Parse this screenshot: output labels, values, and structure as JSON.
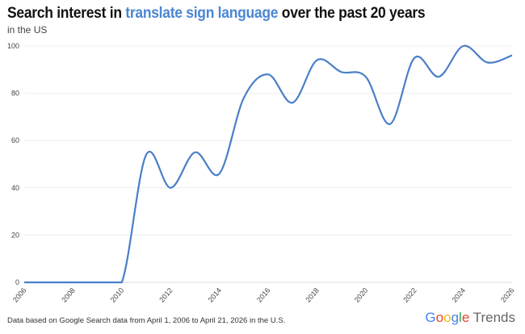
{
  "chart_data": {
    "type": "line",
    "title_prefix": "Search interest in ",
    "title_keyword": "translate sign language",
    "title_suffix": " over the past 20 years",
    "subtitle": "in the US",
    "x": [
      2006,
      2007,
      2008,
      2009,
      2010,
      2011,
      2012,
      2013,
      2014,
      2015,
      2016,
      2017,
      2018,
      2019,
      2020,
      2021,
      2022,
      2023,
      2024,
      2025,
      2026
    ],
    "values": [
      0,
      0,
      0,
      0,
      0,
      54,
      40,
      55,
      46,
      78,
      88,
      76,
      94,
      89,
      87,
      67,
      95,
      87,
      100,
      93,
      96
    ],
    "xlim": [
      2006,
      2026
    ],
    "ylim": [
      0,
      100
    ],
    "x_ticks": [
      "2006",
      "2008",
      "2010",
      "2012",
      "2014",
      "2016",
      "2018",
      "2020",
      "2022",
      "2024",
      "2026"
    ],
    "y_ticks": [
      "0",
      "20",
      "40",
      "60",
      "80",
      "100"
    ],
    "grid": true,
    "line_color": "#4a7fc8",
    "keyword_color": "#4a86d4"
  },
  "footer": "Data based on Google Search data from April 1, 2006 to April 21, 2026 in the U.S.",
  "logo": {
    "google": "Google",
    "trends": "Trends"
  }
}
